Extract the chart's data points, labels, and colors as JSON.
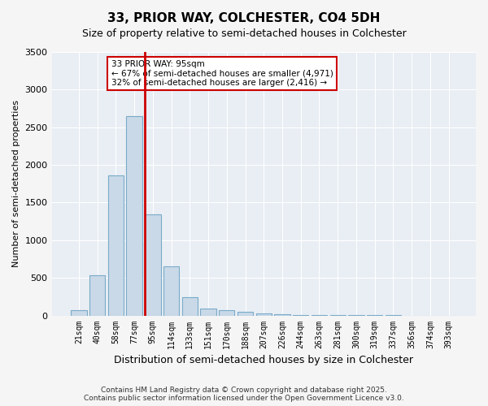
{
  "title": "33, PRIOR WAY, COLCHESTER, CO4 5DH",
  "subtitle": "Size of property relative to semi-detached houses in Colchester",
  "xlabel": "Distribution of semi-detached houses by size in Colchester",
  "ylabel": "Number of semi-detached properties",
  "footer_line1": "Contains HM Land Registry data © Crown copyright and database right 2025.",
  "footer_line2": "Contains public sector information licensed under the Open Government Licence v3.0.",
  "property_label": "33 PRIOR WAY: 95sqm",
  "annotation_line1": "← 67% of semi-detached houses are smaller (4,971)",
  "annotation_line2": "32% of semi-detached houses are larger (2,416) →",
  "bar_color": "#c9d9e8",
  "bar_edge_color": "#7aaac8",
  "red_line_color": "#cc0000",
  "background_color": "#e8eef4",
  "grid_color": "#ffffff",
  "categories": [
    "21sqm",
    "40sqm",
    "58sqm",
    "77sqm",
    "95sqm",
    "114sqm",
    "133sqm",
    "151sqm",
    "170sqm",
    "188sqm",
    "207sqm",
    "226sqm",
    "244sqm",
    "263sqm",
    "281sqm",
    "300sqm",
    "319sqm",
    "337sqm",
    "356sqm",
    "374sqm",
    "393sqm"
  ],
  "values": [
    70,
    530,
    1860,
    2650,
    1340,
    650,
    240,
    95,
    70,
    50,
    30,
    20,
    10,
    5,
    3,
    2,
    1,
    1,
    0,
    0,
    0
  ],
  "property_bar_index": 4,
  "ylim": [
    0,
    3500
  ],
  "yticks": [
    0,
    500,
    1000,
    1500,
    2000,
    2500,
    3000,
    3500
  ]
}
